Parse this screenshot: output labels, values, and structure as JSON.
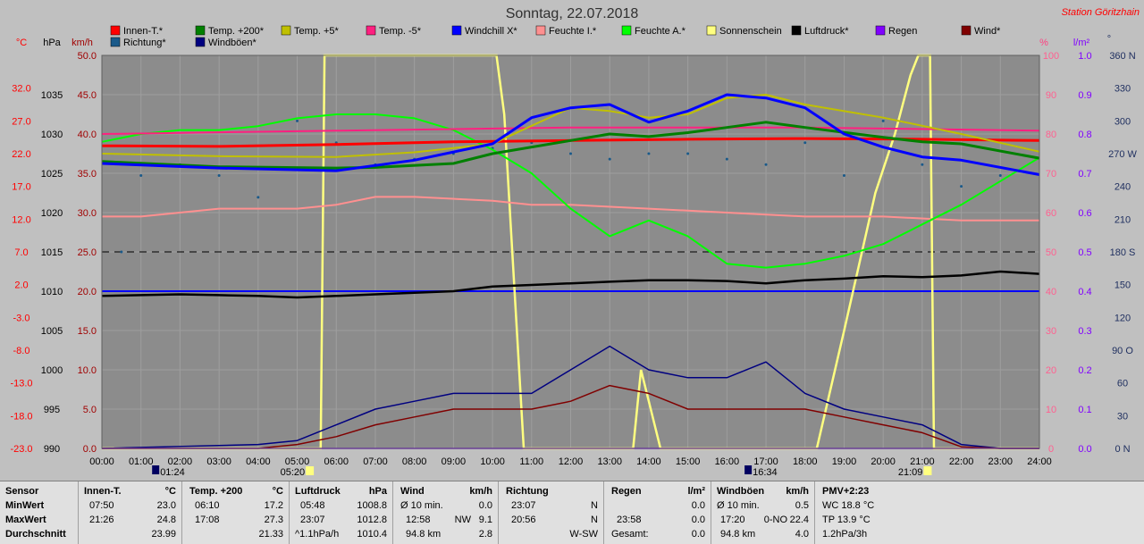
{
  "title": "Sonntag, 22.07.2018",
  "station": "Station Göritzhain",
  "axis_units": {
    "c_left": "°C",
    "hpa": "hPa",
    "kmh": "km/h",
    "pct": "%",
    "lm2": "l/m²",
    "deg": "°"
  },
  "colors": {
    "bg": "#c0c0c0",
    "plot": "#8c8c8c",
    "innen": "#ff0000",
    "t200": "#008000",
    "t5": "#c0c000",
    "tm5": "#ff2080",
    "windchill": "#0000ff",
    "feuchte_i": "#ff9090",
    "feuchte_a": "#00ff00",
    "sonne": "#ffff80",
    "luftdruck": "#000000",
    "regen": "#8000ff",
    "wind": "#800000",
    "richtung": "#1a5a8a",
    "windboeen": "#000080"
  },
  "legend": [
    {
      "label": "Innen-T.*",
      "color": "#ff0000"
    },
    {
      "label": "Temp. +200*",
      "color": "#008000"
    },
    {
      "label": "Temp. +5*",
      "color": "#c0c000"
    },
    {
      "label": "Temp. -5*",
      "color": "#ff2080"
    },
    {
      "label": "Windchill X*",
      "color": "#0000ff"
    },
    {
      "label": "Feuchte I.*",
      "color": "#ff9090"
    },
    {
      "label": "Feuchte A.*",
      "color": "#00ff00"
    },
    {
      "label": "Sonnenschein",
      "color": "#ffff80"
    },
    {
      "label": "Luftdruck*",
      "color": "#000000"
    },
    {
      "label": "Regen",
      "color": "#8000ff"
    },
    {
      "label": "Wind*",
      "color": "#800000"
    },
    {
      "label": "Richtung*",
      "color": "#1a5a8a"
    },
    {
      "label": "Windböen*",
      "color": "#000080"
    }
  ],
  "chart_data": {
    "type": "line",
    "title": "Sonntag, 22.07.2018",
    "x_ticks": [
      "00:00",
      "01:00",
      "02:00",
      "03:00",
      "04:00",
      "05:00",
      "06:00",
      "07:00",
      "08:00",
      "09:00",
      "10:00",
      "11:00",
      "12:00",
      "13:00",
      "14:00",
      "15:00",
      "16:00",
      "17:00",
      "18:00",
      "19:00",
      "20:00",
      "21:00",
      "22:00",
      "23:00",
      "24:00"
    ],
    "x_markers": [
      {
        "time": "01:24",
        "label": "01:24"
      },
      {
        "time": "05:20",
        "label": "05:20"
      },
      {
        "time": "16:34",
        "label": "16:34"
      },
      {
        "time": "21:09",
        "label": "21:09"
      }
    ],
    "axes": {
      "temp_c": {
        "ticks": [
          "32.0",
          "27.0",
          "22.0",
          "17.0",
          "12.0",
          "7.0",
          "2.0",
          "-3.0",
          "-8.0",
          "-13.0",
          "-18.0",
          "-23.0"
        ],
        "range": [
          -23,
          37
        ]
      },
      "pressure_hpa": {
        "ticks": [
          "1035",
          "1030",
          "1025",
          "1020",
          "1015",
          "1010",
          "1005",
          "1000",
          "995",
          "990"
        ],
        "range": [
          990,
          1040
        ]
      },
      "wind_kmh": {
        "ticks": [
          "50.0",
          "45.0",
          "40.0",
          "35.0",
          "30.0",
          "25.0",
          "20.0",
          "15.0",
          "10.0",
          "5.0",
          "0.0"
        ],
        "range": [
          0,
          50
        ]
      },
      "humidity_pct": {
        "ticks": [
          "100",
          "90",
          "80",
          "70",
          "60",
          "50",
          "40",
          "30",
          "20",
          "10",
          "0"
        ],
        "range": [
          0,
          100
        ]
      },
      "rain_lm2": {
        "ticks": [
          "1.0",
          "0.9",
          "0.8",
          "0.7",
          "0.6",
          "0.5",
          "0.4",
          "0.3",
          "0.2",
          "0.1",
          "0.0"
        ],
        "range": [
          0,
          1
        ]
      },
      "direction_deg": {
        "ticks": [
          "360 N",
          "330",
          "300",
          "270 W",
          "240",
          "210",
          "180 S",
          "150",
          "120",
          "90 O",
          "60",
          "30",
          "0 N"
        ],
        "range": [
          0,
          360
        ]
      }
    },
    "series": [
      {
        "name": "Innen-T.*",
        "unit": "°C",
        "x": [
          0,
          3,
          6,
          9,
          12,
          15,
          18,
          21,
          24
        ],
        "y": [
          23.2,
          23.1,
          23.4,
          23.8,
          24.0,
          24.2,
          24.3,
          24.2,
          24.0
        ]
      },
      {
        "name": "Temp. +200*",
        "unit": "°C",
        "x": [
          0,
          3,
          6,
          7,
          9,
          10,
          12,
          13,
          14,
          15,
          16,
          17,
          18,
          20,
          21,
          22,
          24
        ],
        "y": [
          20.8,
          20.0,
          19.8,
          19.9,
          20.5,
          22.0,
          24.0,
          25.0,
          24.6,
          25.2,
          26.0,
          26.8,
          26.0,
          24.5,
          23.8,
          23.5,
          21.3
        ]
      },
      {
        "name": "Temp. +5*",
        "unit": "°C",
        "x": [
          0,
          3,
          6,
          8,
          10,
          12,
          13,
          14,
          15,
          16,
          17,
          18,
          20,
          22,
          24
        ],
        "y": [
          22.0,
          21.6,
          21.5,
          22.2,
          23.5,
          29.0,
          28.5,
          27.5,
          28.0,
          30.5,
          31.0,
          29.5,
          27.5,
          25.0,
          22.3
        ]
      },
      {
        "name": "Temp. -5*",
        "unit": "°C",
        "x": [
          0,
          6,
          12,
          18,
          24
        ],
        "y": [
          25.0,
          25.5,
          26.0,
          26.0,
          25.5
        ]
      },
      {
        "name": "Windchill X*",
        "unit": "°C",
        "x": [
          0,
          3,
          6,
          8,
          10,
          11,
          12,
          13,
          14,
          15,
          16,
          17,
          18,
          19,
          20,
          21,
          22,
          24
        ],
        "y": [
          20.5,
          19.8,
          19.4,
          21.0,
          23.5,
          27.5,
          29.0,
          29.5,
          26.8,
          28.5,
          31.0,
          30.5,
          29.0,
          25.0,
          23.0,
          21.5,
          21.0,
          18.8
        ]
      },
      {
        "name": "Feuchte I.*",
        "unit": "%",
        "x": [
          0,
          1,
          2,
          3,
          4,
          5,
          6,
          7,
          8,
          10,
          11,
          12,
          14,
          16,
          18,
          20,
          22,
          24
        ],
        "y": [
          59,
          59,
          60,
          61,
          61,
          61,
          62,
          64,
          64,
          63,
          62,
          62,
          61,
          60,
          59,
          59,
          58,
          58
        ]
      },
      {
        "name": "Feuchte A.*",
        "unit": "%",
        "x": [
          0,
          1,
          2,
          3,
          4,
          5,
          6,
          7,
          8,
          9,
          10,
          11,
          12,
          13,
          14,
          15,
          16,
          17,
          18,
          19,
          20,
          21,
          22,
          23,
          24
        ],
        "y": [
          78,
          80,
          81,
          81,
          82,
          84,
          85,
          85,
          84,
          81,
          76,
          70,
          61,
          54,
          58,
          54,
          47,
          46,
          47,
          49,
          52,
          57,
          62,
          68,
          74
        ]
      },
      {
        "name": "Sonnenschein",
        "unit": "%",
        "x": [
          0,
          5.6,
          5.7,
          10.1,
          10.3,
          10.8,
          13.6,
          13.8,
          14.3,
          18.3,
          19,
          19.8,
          20.3,
          20.7,
          20.9,
          21.2,
          21.3,
          24
        ],
        "y": [
          0,
          0,
          100,
          100,
          85,
          0,
          0,
          20,
          0,
          0,
          30,
          65,
          80,
          95,
          100,
          100,
          0,
          0
        ]
      },
      {
        "name": "Luftdruck*",
        "unit": "hPa",
        "x": [
          0,
          1,
          2,
          3,
          4,
          5,
          6,
          7,
          8,
          9,
          10,
          11,
          12,
          13,
          14,
          15,
          16,
          17,
          18,
          19,
          20,
          21,
          22,
          23,
          24
        ],
        "y": [
          1009.4,
          1009.5,
          1009.6,
          1009.5,
          1009.4,
          1009.2,
          1009.4,
          1009.6,
          1009.8,
          1010.0,
          1010.6,
          1010.8,
          1011.0,
          1011.2,
          1011.4,
          1011.4,
          1011.3,
          1011.0,
          1011.4,
          1011.6,
          1011.9,
          1011.8,
          1012.0,
          1012.5,
          1012.2
        ]
      },
      {
        "name": "Regen",
        "unit": "l/m²",
        "x": [
          0,
          24
        ],
        "y": [
          0.0,
          0.0
        ]
      },
      {
        "name": "Wind*",
        "unit": "km/h",
        "x": [
          0,
          4,
          5,
          6,
          7,
          8,
          9,
          10,
          11,
          12,
          13,
          14,
          15,
          16,
          17,
          18,
          19,
          20,
          21,
          22,
          23,
          24
        ],
        "y": [
          0,
          0,
          0.5,
          1.5,
          3,
          4,
          5,
          5,
          5,
          6,
          8,
          7,
          5,
          5,
          5,
          5,
          4,
          3,
          2,
          0.2,
          0,
          0
        ]
      },
      {
        "name": "Windböen*",
        "unit": "km/h",
        "x": [
          0,
          4,
          5,
          6,
          7,
          8,
          9,
          10,
          11,
          12,
          13,
          14,
          15,
          16,
          17,
          18,
          19,
          20,
          21,
          22,
          23,
          24
        ],
        "y": [
          0,
          0.5,
          1,
          3,
          5,
          6,
          7,
          7,
          7,
          10,
          13,
          10,
          9,
          9,
          11,
          7,
          5,
          4,
          3,
          0.5,
          0,
          0
        ]
      },
      {
        "name": "Richtung*",
        "unit": "°",
        "x": [
          0.5,
          1,
          2,
          3,
          4,
          5,
          6,
          7,
          8,
          9,
          10,
          11,
          12,
          13,
          14,
          15,
          16,
          17,
          18,
          19,
          20,
          21,
          22,
          23
        ],
        "y": [
          180,
          250,
          260,
          250,
          230,
          300,
          280,
          260,
          265,
          270,
          275,
          280,
          270,
          265,
          270,
          270,
          265,
          260,
          280,
          250,
          300,
          260,
          240,
          250
        ]
      }
    ]
  },
  "stats": {
    "sensor": {
      "label": "Sensor",
      "min": "MinWert",
      "max": "MaxWert",
      "avg": "Durchschnitt"
    },
    "innen": {
      "header": "Innen-T.",
      "unit": "°C",
      "min_t": "07:50",
      "min_v": "23.0",
      "max_t": "21:26",
      "max_v": "24.8",
      "avg": "23.99"
    },
    "temp200": {
      "header": "Temp. +200",
      "unit": "°C",
      "min_t": "06:10",
      "min_v": "17.2",
      "max_t": "17:08",
      "max_v": "27.3",
      "avg": "21.33"
    },
    "luftdruck": {
      "header": "Luftdruck",
      "unit": "hPa",
      "min_t": "05:48",
      "min_v": "1008.8",
      "max_t": "23:07",
      "max_v": "1012.8",
      "trend": "^1.1hPa/h",
      "avg": "1010.4"
    },
    "wind": {
      "header": "Wind",
      "unit": "km/h",
      "r1_l": "Ø 10 min.",
      "r1_v": "0.0",
      "r2_l": "12:58",
      "r2_d": "NW",
      "r2_v": "9.1",
      "r3_l": "94.8 km",
      "r3_v": "2.8"
    },
    "richtung": {
      "header": "Richtung",
      "r1_l": "23:07",
      "r1_v": "N",
      "r2_l": "20:56",
      "r2_v": "N",
      "r3_v": "W-SW"
    },
    "regen": {
      "header": "Regen",
      "unit": "l/m²",
      "r2_l": "23:58",
      "r2_v": "0.0",
      "r1_v": "0.0",
      "r3_l": "Gesamt:",
      "r3_v": "0.0"
    },
    "windboeen": {
      "header": "Windböen",
      "unit": "km/h",
      "r1_l": "Ø 10 min.",
      "r1_v": "0.5",
      "r2_l": "17:20",
      "r2_d": "0-NO",
      "r2_v": "22.4",
      "r3_l": "94.8 km",
      "r3_v": "4.0"
    },
    "pmv": {
      "header": "PMV+2:23",
      "r1": "WC 18.8 °C",
      "r2": "TP 13.9 °C",
      "r3": "1.2hPa/3h"
    }
  }
}
